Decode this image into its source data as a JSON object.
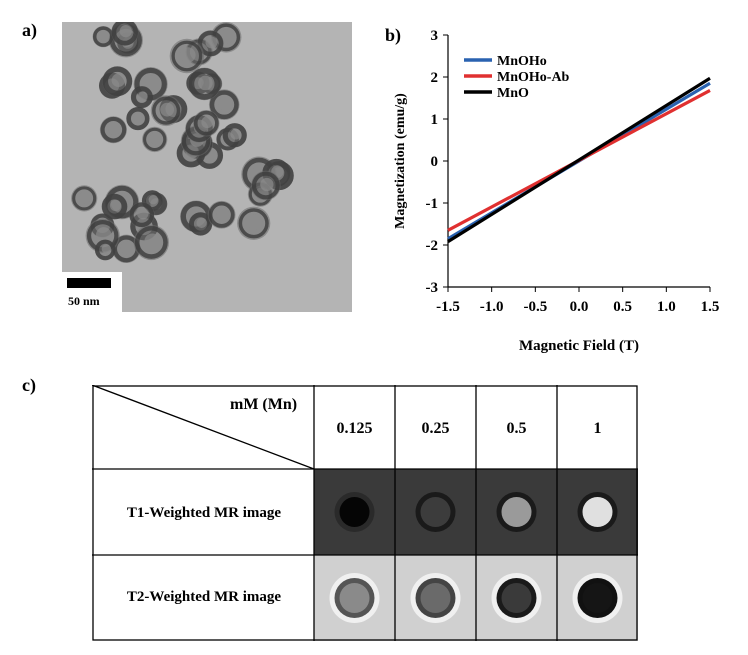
{
  "panels": {
    "a": "a)",
    "b": "b)",
    "c": "c)"
  },
  "tem": {
    "scale_bar_label": "50 nm"
  },
  "chart_data": {
    "type": "line",
    "xlabel": "Magnetic Field (T)",
    "ylabel": "Magnetization (emu/g)",
    "xlim": [
      -1.5,
      1.5
    ],
    "ylim": [
      -3,
      3
    ],
    "xticks": [
      "-1.5",
      "-1.0",
      "-0.5",
      "0.0",
      "0.5",
      "1.0",
      "1.5"
    ],
    "yticks": [
      "3",
      "2",
      "1",
      "0",
      "-1",
      "-2",
      "-3"
    ],
    "legend_position": "top-left",
    "grid": false,
    "series": [
      {
        "name": "MnOHo",
        "color": "#2a62b0",
        "x": [
          -1.5,
          1.5
        ],
        "y": [
          -1.85,
          1.85
        ]
      },
      {
        "name": "MnOHo-Ab",
        "color": "#e03030",
        "x": [
          -1.5,
          1.5
        ],
        "y": [
          -1.65,
          1.68
        ]
      },
      {
        "name": "MnO",
        "color": "#000000",
        "x": [
          -1.5,
          1.5
        ],
        "y": [
          -1.92,
          1.97
        ]
      }
    ]
  },
  "table": {
    "corner_label": "mM (Mn)",
    "concentrations": [
      "0.125",
      "0.25",
      "0.5",
      "1"
    ],
    "rows": [
      {
        "label": "T1-Weighted MR image",
        "bg": "#3a3a3a",
        "spots": [
          {
            "ring": "#2a2a2a",
            "fill": "#050505"
          },
          {
            "ring": "#1a1a1a",
            "fill": "#3c3c3c"
          },
          {
            "ring": "#1a1a1a",
            "fill": "#9a9a9a"
          },
          {
            "ring": "#1a1a1a",
            "fill": "#e0e0e0"
          }
        ]
      },
      {
        "label": "T2-Weighted MR image",
        "bg": "#d0d0d0",
        "spots": [
          {
            "ring": "#555555",
            "fill": "#8a8a8a"
          },
          {
            "ring": "#444444",
            "fill": "#6a6a6a"
          },
          {
            "ring": "#1a1a1a",
            "fill": "#3a3a3a"
          },
          {
            "ring": "#111111",
            "fill": "#151515"
          }
        ]
      }
    ]
  }
}
